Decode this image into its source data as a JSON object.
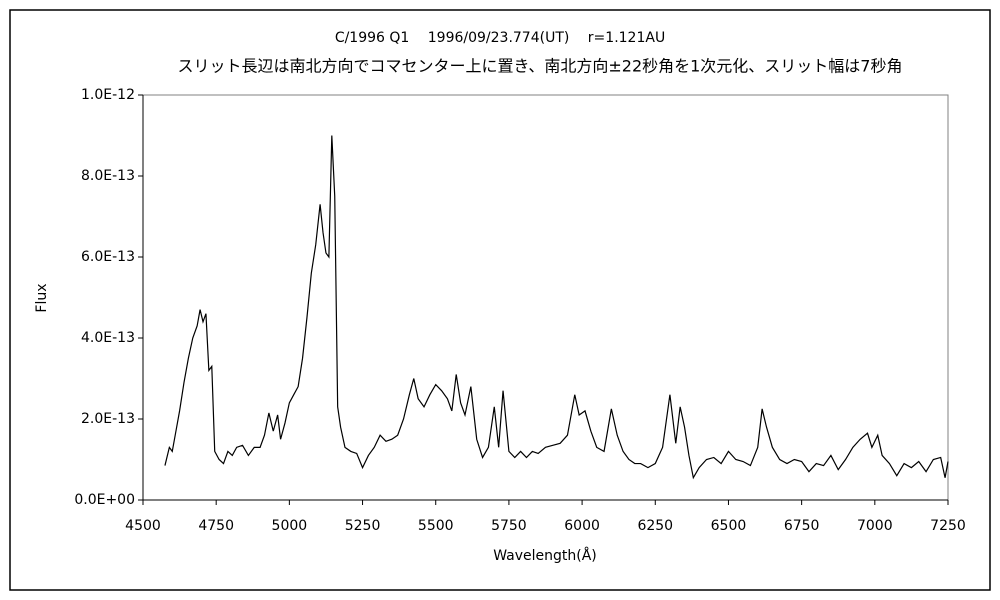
{
  "chart_data": {
    "type": "line",
    "title": "C/1996 Q1　 1996/09/23.774(UT)　 r=1.121AU",
    "subtitle": "スリット長辺は南北方向でコマセンター上に置き、南北方向±22秒角を1次元化、スリット幅は7秒角",
    "x_label": "Wavelength(Å)",
    "y_label": "Flux",
    "xlim": [
      4500,
      7250
    ],
    "xticks": [
      4500,
      4750,
      5000,
      5250,
      5500,
      5750,
      6000,
      6250,
      6500,
      6750,
      7000,
      7250
    ],
    "ylim": [
      0,
      1e-12
    ],
    "yticks": [
      {
        "value": 0,
        "label": "0.0E+00"
      },
      {
        "value": 2e-13,
        "label": "2.0E-13"
      },
      {
        "value": 4e-13,
        "label": "4.0E-13"
      },
      {
        "value": 6e-13,
        "label": "6.0E-13"
      },
      {
        "value": 8e-13,
        "label": "8.0E-13"
      },
      {
        "value": 1e-12,
        "label": "1.0E-12"
      }
    ],
    "grid": false,
    "x": [
      4575,
      4590,
      4600,
      4610,
      4625,
      4640,
      4655,
      4670,
      4685,
      4695,
      4705,
      4715,
      4725,
      4735,
      4745,
      4760,
      4775,
      4790,
      4805,
      4820,
      4840,
      4860,
      4880,
      4900,
      4915,
      4930,
      4945,
      4960,
      4970,
      4985,
      5000,
      5015,
      5030,
      5045,
      5060,
      5075,
      5090,
      5105,
      5115,
      5125,
      5135,
      5145,
      5155,
      5165,
      5175,
      5190,
      5210,
      5230,
      5250,
      5270,
      5290,
      5310,
      5330,
      5350,
      5370,
      5390,
      5410,
      5425,
      5440,
      5460,
      5480,
      5500,
      5520,
      5540,
      5555,
      5570,
      5585,
      5600,
      5620,
      5640,
      5660,
      5680,
      5700,
      5715,
      5730,
      5750,
      5770,
      5790,
      5810,
      5830,
      5850,
      5875,
      5900,
      5925,
      5950,
      5975,
      5990,
      6010,
      6030,
      6050,
      6075,
      6100,
      6120,
      6140,
      6160,
      6180,
      6200,
      6225,
      6250,
      6275,
      6300,
      6320,
      6335,
      6350,
      6365,
      6380,
      6400,
      6425,
      6450,
      6475,
      6500,
      6525,
      6550,
      6575,
      6600,
      6615,
      6630,
      6650,
      6675,
      6700,
      6725,
      6750,
      6775,
      6800,
      6825,
      6850,
      6875,
      6900,
      6925,
      6950,
      6975,
      6990,
      7010,
      7025,
      7050,
      7075,
      7100,
      7125,
      7150,
      7175,
      7200,
      7225,
      7240,
      7250
    ],
    "series": [
      {
        "name": "Flux",
        "color": "#000000",
        "values": [
          8.5e-14,
          1.3e-13,
          1.2e-13,
          1.6e-13,
          2.2e-13,
          2.9e-13,
          3.5e-13,
          4e-13,
          4.3e-13,
          4.7e-13,
          4.4e-13,
          4.6e-13,
          3.2e-13,
          3.3e-13,
          1.2e-13,
          1e-13,
          9e-14,
          1.2e-13,
          1.1e-13,
          1.3e-13,
          1.35e-13,
          1.1e-13,
          1.3e-13,
          1.3e-13,
          1.6e-13,
          2.15e-13,
          1.7e-13,
          2.1e-13,
          1.5e-13,
          1.9e-13,
          2.4e-13,
          2.6e-13,
          2.8e-13,
          3.5e-13,
          4.5e-13,
          5.6e-13,
          6.3e-13,
          7.3e-13,
          6.6e-13,
          6.1e-13,
          6e-13,
          9e-13,
          7.5e-13,
          2.3e-13,
          1.8e-13,
          1.3e-13,
          1.2e-13,
          1.15e-13,
          8e-14,
          1.1e-13,
          1.3e-13,
          1.6e-13,
          1.45e-13,
          1.5e-13,
          1.6e-13,
          2e-13,
          2.6e-13,
          3e-13,
          2.5e-13,
          2.3e-13,
          2.6e-13,
          2.85e-13,
          2.7e-13,
          2.5e-13,
          2.2e-13,
          3.1e-13,
          2.4e-13,
          2.1e-13,
          2.8e-13,
          1.5e-13,
          1.05e-13,
          1.3e-13,
          2.3e-13,
          1.3e-13,
          2.7e-13,
          1.2e-13,
          1.05e-13,
          1.2e-13,
          1.05e-13,
          1.2e-13,
          1.15e-13,
          1.3e-13,
          1.35e-13,
          1.4e-13,
          1.6e-13,
          2.6e-13,
          2.1e-13,
          2.2e-13,
          1.7e-13,
          1.3e-13,
          1.2e-13,
          2.25e-13,
          1.6e-13,
          1.2e-13,
          1e-13,
          9e-14,
          9e-14,
          8e-14,
          9e-14,
          1.3e-13,
          2.6e-13,
          1.4e-13,
          2.3e-13,
          1.8e-13,
          1.1e-13,
          5.5e-14,
          8e-14,
          1e-13,
          1.05e-13,
          9e-14,
          1.2e-13,
          1e-13,
          9.5e-14,
          8.5e-14,
          1.3e-13,
          2.25e-13,
          1.8e-13,
          1.3e-13,
          1e-13,
          9e-14,
          1e-13,
          9.5e-14,
          7e-14,
          9e-14,
          8.5e-14,
          1.1e-13,
          7.5e-14,
          1e-13,
          1.3e-13,
          1.5e-13,
          1.65e-13,
          1.3e-13,
          1.6e-13,
          1.1e-13,
          9e-14,
          6e-14,
          9e-14,
          8e-14,
          9.5e-14,
          7e-14,
          1e-13,
          1.05e-13,
          5.5e-14,
          9.5e-14
        ]
      }
    ]
  }
}
